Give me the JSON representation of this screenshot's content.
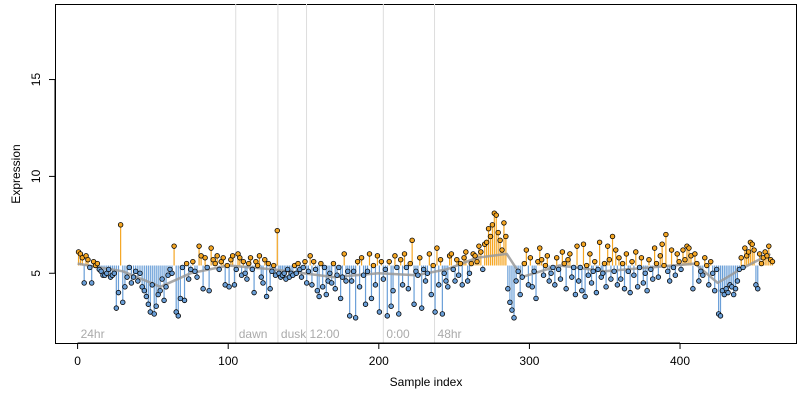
{
  "chart_data": {
    "type": "scatter",
    "title": "",
    "xlabel": "Sample index",
    "ylabel": "Expression",
    "xlim": [
      -15,
      477
    ],
    "ylim": [
      1.4,
      18.9
    ],
    "x_ticks": [
      0,
      100,
      200,
      300,
      400
    ],
    "y_ticks": [
      5,
      10,
      15
    ],
    "baseline": 5.4,
    "colors": {
      "above": "#f5a623",
      "below": "#6a9fd8",
      "smooth": "#999999",
      "phase_line": "#dddddd",
      "phase_label": "#aaaaaa"
    },
    "phase_markers": [
      {
        "label": "24hr",
        "x": 0
      },
      {
        "label": "dawn",
        "x": 105
      },
      {
        "label": "dusk",
        "x": 133
      },
      {
        "label": "12:00",
        "x": 152
      },
      {
        "label": "0:00",
        "x": 203
      },
      {
        "label": "48hr",
        "x": 237
      }
    ],
    "trend": [
      [
        0,
        5.5
      ],
      [
        30,
        5.1
      ],
      [
        55,
        4.3
      ],
      [
        75,
        5.0
      ],
      [
        100,
        5.4
      ],
      [
        130,
        5.2
      ],
      [
        150,
        5.0
      ],
      [
        170,
        4.8
      ],
      [
        200,
        5.0
      ],
      [
        225,
        4.9
      ],
      [
        245,
        5.2
      ],
      [
        265,
        5.8
      ],
      [
        285,
        6.0
      ],
      [
        295,
        4.8
      ],
      [
        320,
        5.4
      ],
      [
        350,
        5.1
      ],
      [
        380,
        5.3
      ],
      [
        410,
        5.5
      ],
      [
        425,
        4.5
      ],
      [
        440,
        5.2
      ],
      [
        460,
        6.0
      ]
    ],
    "segments": [
      {
        "from": 0,
        "to": 25,
        "values": [
          6.1,
          6.0,
          5.8,
          4.5,
          5.9,
          5.7,
          5.3,
          4.5,
          5.6,
          5.4,
          5.5,
          5.2,
          5.1,
          4.9,
          4.9,
          5.0,
          5.2,
          4.8,
          4.9,
          5.0
        ]
      },
      {
        "from": 25,
        "to": 45,
        "values": [
          3.2,
          4.0,
          7.5,
          3.5,
          4.3,
          4.8,
          5.3,
          4.5,
          4.8,
          5.1,
          4.6,
          5.0,
          4.3,
          4.1
        ]
      },
      {
        "from": 45,
        "to": 62,
        "values": [
          3.8,
          3.4,
          3.0,
          4.4,
          2.9,
          3.3,
          3.9,
          4.1,
          4.7,
          3.6,
          4.3,
          4.9,
          5.2
        ]
      },
      {
        "from": 62,
        "to": 80,
        "values": [
          5.0,
          6.4,
          3.0,
          2.8,
          3.7,
          5.3,
          3.6,
          5.5,
          4.7,
          5.2,
          5.6,
          5.1,
          4.8
        ]
      },
      {
        "from": 80,
        "to": 100,
        "values": [
          6.4,
          5.9,
          4.2,
          5.8,
          5.3,
          4.1,
          6.3,
          5.7,
          5.5,
          5.9,
          5.2,
          5.6,
          5.8,
          4.4,
          5.4
        ]
      },
      {
        "from": 100,
        "to": 132,
        "values": [
          4.3,
          5.7,
          5.9,
          4.4,
          5.2,
          6.0,
          5.8,
          4.9,
          5.6,
          5.0,
          4.7,
          5.5,
          5.8,
          5.2,
          4.0,
          5.6,
          5.4,
          5.9,
          4.8,
          4.5,
          5.7,
          3.8,
          5.5,
          4.2,
          5.1,
          5.4,
          4.9
        ]
      },
      {
        "from": 132,
        "to": 155,
        "values": [
          7.2,
          5.0,
          4.8,
          4.9,
          5.0,
          4.7,
          5.2,
          4.8,
          5.0,
          4.9,
          5.4,
          5.0,
          5.5,
          5.2,
          4.8,
          5.3,
          5.6,
          4.5,
          5.1,
          5.9
        ]
      },
      {
        "from": 155,
        "to": 180,
        "values": [
          4.4,
          5.6,
          5.2,
          4.1,
          3.8,
          5.5,
          4.3,
          5.3,
          3.9,
          4.6,
          5.0,
          4.5,
          5.5,
          4.2,
          4.9,
          5.3,
          3.7,
          4.8,
          6.0,
          4.6,
          5.1
        ]
      },
      {
        "from": 180,
        "to": 205,
        "values": [
          2.8,
          4.6,
          5.1,
          2.7,
          5.6,
          4.3,
          5.8,
          4.9,
          3.4,
          5.1,
          6.0,
          3.7,
          5.4,
          4.4,
          5.9,
          3.0,
          5.6,
          4.7,
          5.2
        ]
      },
      {
        "from": 205,
        "to": 238,
        "values": [
          2.8,
          5.6,
          3.3,
          4.1,
          5.9,
          5.3,
          2.9,
          5.7,
          4.4,
          6.0,
          5.3,
          4.2,
          5.5,
          6.7,
          3.4,
          5.1,
          4.9,
          5.8,
          3.2,
          5.2,
          4.6,
          5.0,
          6.0,
          3.9,
          5.4,
          3.0
        ]
      },
      {
        "from": 238,
        "to": 262,
        "values": [
          6.3,
          4.4,
          5.7,
          2.9,
          5.0,
          4.6,
          4.3,
          5.9,
          6.0,
          5.2,
          4.6,
          5.7,
          4.9,
          5.5,
          4.4,
          5.8,
          6.1,
          4.6,
          5.0,
          5.5
        ]
      },
      {
        "from": 262,
        "to": 285,
        "values": [
          6.0,
          5.9,
          5.6,
          6.4,
          6.1,
          5.2,
          6.5,
          6.6,
          7.3,
          6.9,
          7.5,
          8.1,
          8.0,
          7.1,
          6.7,
          6.2,
          7.6,
          6.9
        ]
      },
      {
        "from": 285,
        "to": 300,
        "values": [
          4.2,
          3.5,
          3.1,
          2.7,
          4.6,
          5.1,
          3.9,
          4.8,
          5.5,
          6.2,
          4.4
        ]
      },
      {
        "from": 300,
        "to": 330,
        "values": [
          5.8,
          4.3,
          5.1,
          3.7,
          5.6,
          6.3,
          5.7,
          4.9,
          5.4,
          5.9,
          4.6,
          5.0,
          5.3,
          4.4,
          5.8,
          5.2,
          4.7,
          6.1,
          5.5,
          4.2,
          5.7,
          6.0,
          4.8,
          5.3
        ]
      },
      {
        "from": 330,
        "to": 360,
        "values": [
          3.9,
          6.4,
          4.6,
          5.3,
          4.1,
          6.5,
          3.8,
          5.4,
          4.9,
          6.0,
          4.5,
          5.1,
          5.6,
          4.0,
          5.2,
          6.6,
          4.8,
          5.0,
          5.5,
          4.3,
          6.4,
          5.7,
          4.7,
          6.9,
          5.1,
          6.2,
          4.4,
          5.8
        ]
      },
      {
        "from": 360,
        "to": 400,
        "values": [
          4.7,
          5.5,
          4.2,
          6.0,
          5.1,
          4.0,
          5.6,
          4.9,
          6.1,
          4.3,
          5.3,
          5.8,
          4.5,
          5.0,
          4.1,
          5.7,
          5.2,
          4.7,
          6.3,
          5.5,
          4.8,
          5.9,
          6.5,
          5.4,
          7.0,
          5.1,
          4.6,
          6.2,
          5.3,
          4.9,
          6.0,
          5.6
        ]
      },
      {
        "from": 400,
        "to": 425,
        "values": [
          5.2,
          6.2,
          5.7,
          6.4,
          6.3,
          5.9,
          4.2,
          6.0,
          5.5,
          4.6,
          5.1,
          4.9,
          5.8,
          5.4,
          4.4,
          5.6,
          5.0,
          4.1,
          5.2
        ]
      },
      {
        "from": 425,
        "to": 440,
        "values": [
          2.9,
          2.8,
          4.1,
          3.9,
          4.2,
          4.0,
          4.4,
          4.3,
          3.9,
          4.2,
          4.6,
          5.2
        ]
      },
      {
        "from": 440,
        "to": 462,
        "values": [
          5.8,
          5.3,
          6.3,
          5.9,
          6.1,
          6.6,
          6.5,
          6.2,
          4.4,
          4.2,
          6.0,
          5.5,
          5.8,
          6.1,
          5.9,
          6.4,
          5.7,
          5.6
        ]
      }
    ]
  }
}
